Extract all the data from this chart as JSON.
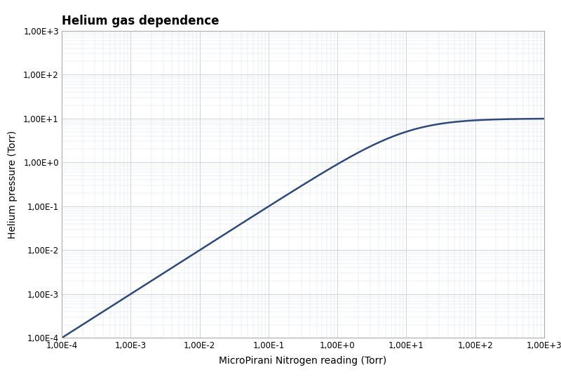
{
  "title": "Helium gas dependence",
  "xlabel": "MicroPirani Nitrogen reading (Torr)",
  "ylabel": "Helium pressure (Torr)",
  "x_min": 0.0001,
  "x_max": 1000.0,
  "y_min": 0.0001,
  "y_max": 1000.0,
  "line_color": "#2d4a7a",
  "line_width": 1.8,
  "background_color": "#ffffff",
  "grid_color_major": "#c8cdd8",
  "grid_color_minor": "#dde0e8",
  "title_fontsize": 12,
  "label_fontsize": 10,
  "tick_fontsize": 8.5
}
